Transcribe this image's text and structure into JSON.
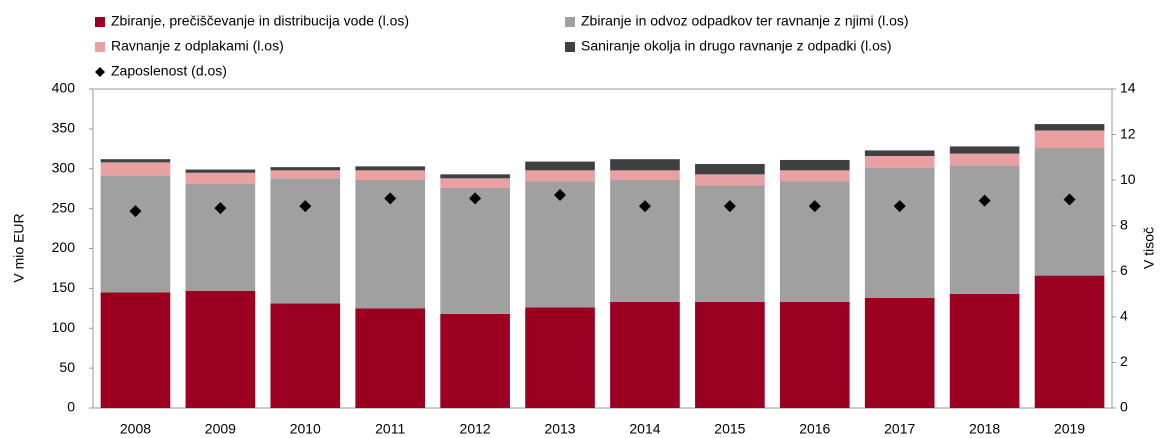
{
  "chart_data": {
    "type": "bar",
    "stacked": true,
    "categories": [
      "2008",
      "2009",
      "2010",
      "2011",
      "2012",
      "2013",
      "2014",
      "2015",
      "2016",
      "2017",
      "2018",
      "2019"
    ],
    "series": [
      {
        "name": "Zbiranje, prečiščevanje in distribucija vode (l.os)",
        "color": "#9b0020",
        "values": [
          145,
          147,
          131,
          125,
          118,
          126,
          133,
          133,
          133,
          138,
          143,
          166
        ]
      },
      {
        "name": "Zbiranje in odvoz odpadkov ter ravnanje z njimi (l.os)",
        "color": "#a0a0a0",
        "values": [
          146,
          134,
          157,
          161,
          158,
          158,
          153,
          146,
          151,
          163,
          161,
          160
        ]
      },
      {
        "name": "Ravnanje z odplakami (l.os)",
        "color": "#e8a0a0",
        "values": [
          17,
          14,
          10,
          12,
          12,
          14,
          12,
          14,
          14,
          15,
          15,
          22
        ]
      },
      {
        "name": "Saniranje okolja in drugo ravnanje z odpadki (l.os)",
        "color": "#404040",
        "values": [
          4,
          4,
          4,
          5,
          5,
          11,
          14,
          13,
          13,
          7,
          9,
          8
        ]
      },
      {
        "name": "Zaposlenost (d.os)",
        "color": "#000000",
        "type": "scatter",
        "axis": "y2",
        "values": [
          8.64,
          8.77,
          8.86,
          9.2,
          9.2,
          9.35,
          8.86,
          8.86,
          8.86,
          8.86,
          9.1,
          9.15
        ]
      }
    ],
    "ylabel": "V mio EUR",
    "y2label": "V tisoč",
    "ylim": [
      0,
      400
    ],
    "yticks": [
      0,
      50,
      100,
      150,
      200,
      250,
      300,
      350,
      400
    ],
    "y2lim": [
      0,
      14
    ],
    "y2ticks": [
      0,
      2,
      4,
      6,
      8,
      10,
      12,
      14
    ],
    "grid": false,
    "legend": "top"
  }
}
